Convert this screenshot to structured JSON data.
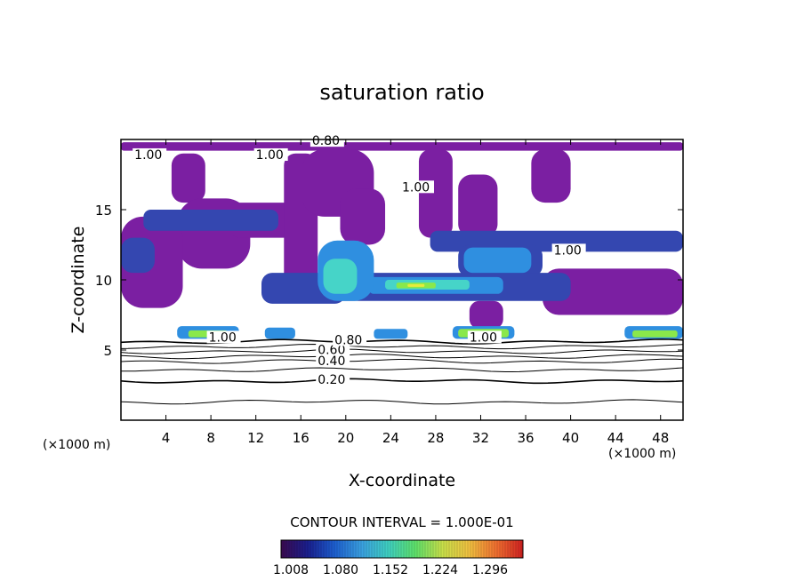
{
  "chart_data": {
    "type": "heatmap",
    "title": "saturation ratio",
    "xlabel": "X-coordinate",
    "ylabel": "Z-coordinate",
    "x_unit_label": "(×1000 m)",
    "y_unit_label": "(×1000 m)",
    "xlim": [
      0,
      50
    ],
    "ylim": [
      0,
      20
    ],
    "x_ticks": [
      4,
      8,
      12,
      16,
      20,
      24,
      28,
      32,
      36,
      40,
      44,
      48
    ],
    "y_ticks": [
      5,
      10,
      15
    ],
    "contour_interval_text": "CONTOUR INTERVAL = 1.000E-01",
    "colorbar": {
      "ticks": [
        "1.008",
        "1.080",
        "1.152",
        "1.224",
        "1.296"
      ],
      "min": 1.008,
      "max": 1.32,
      "colors": [
        "#3b0a4f",
        "#1a1f8f",
        "#1d5fd0",
        "#3aa0e0",
        "#3fd0c0",
        "#5ee06a",
        "#c8e04a",
        "#f0c040",
        "#f07030",
        "#d02020"
      ]
    },
    "fill_colors": {
      "base": "#7b1fa2",
      "low": "#3447b0",
      "mid": "#2f8fe0",
      "mid2": "#46d4c8",
      "high": "#8ae84a",
      "peak": "#e6ec3a"
    },
    "contour_lines": [
      {
        "level": 0.2,
        "z": 2.8
      },
      {
        "level": 0.3,
        "z": 3.6
      },
      {
        "level": 0.4,
        "z": 4.2
      },
      {
        "level": 0.5,
        "z": 4.55
      },
      {
        "level": 0.6,
        "z": 4.9
      },
      {
        "level": 0.7,
        "z": 5.25
      },
      {
        "level": 0.8,
        "z": 5.6
      },
      {
        "level": 0.1,
        "z": 1.3
      }
    ],
    "contour_labels": [
      {
        "text": "0.20",
        "x": 17.5,
        "z": 2.8
      },
      {
        "text": "0.40",
        "x": 17.5,
        "z": 4.1
      },
      {
        "text": "0.60",
        "x": 17.5,
        "z": 4.9
      },
      {
        "text": "0.80",
        "x": 19.0,
        "z": 5.6
      },
      {
        "text": "1.00",
        "x": 7.8,
        "z": 5.8
      },
      {
        "text": "1.00",
        "x": 31.0,
        "z": 5.8
      },
      {
        "text": "0.80",
        "x": 17.0,
        "z": 19.8
      },
      {
        "text": "1.00",
        "x": 1.2,
        "z": 18.8
      },
      {
        "text": "1.00",
        "x": 12.0,
        "z": 18.8
      },
      {
        "text": "1.00",
        "x": 25.0,
        "z": 16.5
      },
      {
        "text": "1.00",
        "x": 38.5,
        "z": 12.0
      }
    ],
    "regions": [
      {
        "level": "base",
        "x": [
          0,
          50
        ],
        "z": [
          19.2,
          19.8
        ]
      },
      {
        "level": "base",
        "x": [
          4.5,
          7.5
        ],
        "z": [
          15.5,
          19.0
        ]
      },
      {
        "level": "base",
        "x": [
          5.0,
          11.5
        ],
        "z": [
          10.8,
          15.8
        ]
      },
      {
        "level": "base",
        "x": [
          9.5,
          17.0
        ],
        "z": [
          13.0,
          15.5
        ]
      },
      {
        "level": "base",
        "x": [
          14.5,
          17.5
        ],
        "z": [
          8.5,
          19.0
        ]
      },
      {
        "level": "base",
        "x": [
          16.0,
          22.5
        ],
        "z": [
          14.5,
          19.3
        ]
      },
      {
        "level": "base",
        "x": [
          19.5,
          23.5
        ],
        "z": [
          12.5,
          16.5
        ]
      },
      {
        "level": "base",
        "x": [
          26.5,
          29.5
        ],
        "z": [
          13.0,
          19.3
        ]
      },
      {
        "level": "base",
        "x": [
          30.0,
          33.5
        ],
        "z": [
          13.0,
          17.5
        ]
      },
      {
        "level": "base",
        "x": [
          36.5,
          40.0
        ],
        "z": [
          15.5,
          19.3
        ]
      },
      {
        "level": "base",
        "x": [
          0,
          5.5
        ],
        "z": [
          8.0,
          14.5
        ]
      },
      {
        "level": "base",
        "x": [
          37.5,
          50
        ],
        "z": [
          7.5,
          10.8
        ]
      },
      {
        "level": "base",
        "x": [
          31.0,
          34.0
        ],
        "z": [
          6.5,
          8.5
        ]
      },
      {
        "level": "low",
        "x": [
          0,
          3.0
        ],
        "z": [
          10.5,
          13.0
        ]
      },
      {
        "level": "low",
        "x": [
          2.0,
          14.0
        ],
        "z": [
          13.5,
          15.0
        ]
      },
      {
        "level": "low",
        "x": [
          27.5,
          50
        ],
        "z": [
          12.0,
          13.5
        ]
      },
      {
        "level": "low",
        "x": [
          30.0,
          37.5
        ],
        "z": [
          10.2,
          12.5
        ]
      },
      {
        "level": "low",
        "x": [
          18.0,
          40.0
        ],
        "z": [
          8.5,
          10.5
        ]
      },
      {
        "level": "low",
        "x": [
          12.5,
          20.0
        ],
        "z": [
          8.3,
          10.5
        ]
      },
      {
        "level": "mid",
        "x": [
          30.5,
          36.5
        ],
        "z": [
          10.5,
          12.3
        ]
      },
      {
        "level": "mid",
        "x": [
          22.0,
          34.0
        ],
        "z": [
          9.0,
          10.2
        ]
      },
      {
        "level": "mid",
        "x": [
          17.5,
          22.5
        ],
        "z": [
          8.5,
          12.8
        ]
      },
      {
        "level": "mid2",
        "x": [
          23.5,
          31.0
        ],
        "z": [
          9.3,
          10.0
        ]
      },
      {
        "level": "mid2",
        "x": [
          18.0,
          21.0
        ],
        "z": [
          9.0,
          11.5
        ]
      },
      {
        "level": "mid",
        "x": [
          5.0,
          10.5
        ],
        "z": [
          5.8,
          6.7
        ]
      },
      {
        "level": "mid",
        "x": [
          12.8,
          15.5
        ],
        "z": [
          5.8,
          6.6
        ]
      },
      {
        "level": "mid",
        "x": [
          22.5,
          25.5
        ],
        "z": [
          5.8,
          6.5
        ]
      },
      {
        "level": "mid",
        "x": [
          29.5,
          35.0
        ],
        "z": [
          5.8,
          6.7
        ]
      },
      {
        "level": "mid",
        "x": [
          44.8,
          50
        ],
        "z": [
          5.8,
          6.7
        ]
      },
      {
        "level": "high",
        "x": [
          6.0,
          9.5
        ],
        "z": [
          5.9,
          6.4
        ]
      },
      {
        "level": "high",
        "x": [
          30.0,
          34.5
        ],
        "z": [
          5.9,
          6.5
        ]
      },
      {
        "level": "high",
        "x": [
          45.5,
          49.5
        ],
        "z": [
          5.9,
          6.4
        ]
      },
      {
        "level": "high",
        "x": [
          24.5,
          28.0
        ],
        "z": [
          9.4,
          9.8
        ]
      },
      {
        "level": "peak",
        "x": [
          25.5,
          27.0
        ],
        "z": [
          9.5,
          9.7
        ]
      }
    ]
  }
}
